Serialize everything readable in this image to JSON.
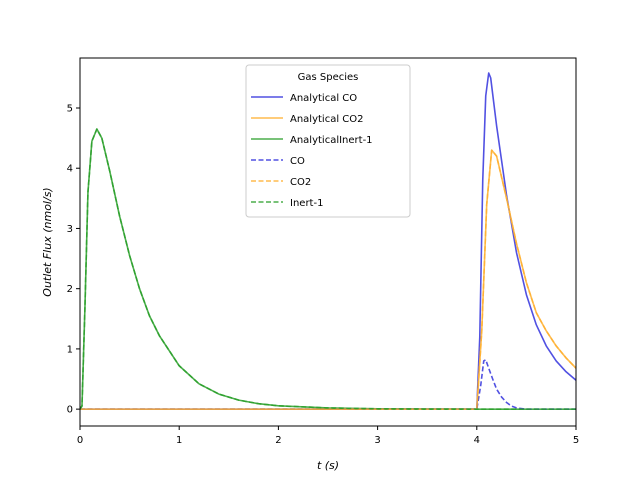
{
  "chart_data": {
    "type": "line",
    "title": "",
    "xlabel": "t (s)",
    "ylabel": "Outlet Flux (nmol/s)",
    "xlim": [
      0,
      5
    ],
    "ylim": [
      -0.28,
      5.83
    ],
    "xticks": [
      "0",
      "1",
      "2",
      "3",
      "4",
      "5"
    ],
    "yticks": [
      "0",
      "1",
      "2",
      "3",
      "4",
      "5"
    ],
    "grid": false,
    "legend": {
      "title": "Gas Species",
      "placement": "upper-center"
    },
    "colors": {
      "CO": "#3333dd",
      "CO2": "#ffb030",
      "Inert": "#2ca02c"
    },
    "series": [
      {
        "name": "Analytical CO",
        "color": "#3333dd",
        "dash": "solid",
        "x": [
          0,
          4.0,
          4.03,
          4.06,
          4.09,
          4.12,
          4.14,
          4.17,
          4.2,
          4.3,
          4.4,
          4.5,
          4.6,
          4.7,
          4.8,
          4.9,
          5.0
        ],
        "y": [
          0,
          0,
          1.2,
          3.8,
          5.2,
          5.58,
          5.5,
          5.1,
          4.7,
          3.55,
          2.6,
          1.9,
          1.4,
          1.05,
          0.8,
          0.62,
          0.48
        ]
      },
      {
        "name": "Analytical CO2",
        "color": "#ffb030",
        "dash": "solid",
        "x": [
          0,
          4.0,
          4.05,
          4.1,
          4.15,
          4.2,
          4.3,
          4.4,
          4.5,
          4.6,
          4.7,
          4.8,
          4.9,
          5.0
        ],
        "y": [
          0,
          0,
          1.3,
          3.4,
          4.3,
          4.2,
          3.5,
          2.75,
          2.1,
          1.6,
          1.3,
          1.05,
          0.85,
          0.68
        ]
      },
      {
        "name": "AnalyticalInert-1",
        "color": "#2ca02c",
        "dash": "solid",
        "x": [
          0,
          0.02,
          0.05,
          0.08,
          0.12,
          0.17,
          0.22,
          0.3,
          0.4,
          0.5,
          0.6,
          0.7,
          0.8,
          1.0,
          1.2,
          1.4,
          1.6,
          1.8,
          2.0,
          2.5,
          3.0,
          3.5,
          4.0,
          5.0
        ],
        "y": [
          0,
          0.05,
          1.7,
          3.6,
          4.45,
          4.65,
          4.5,
          3.95,
          3.2,
          2.55,
          2.0,
          1.55,
          1.22,
          0.72,
          0.42,
          0.25,
          0.15,
          0.09,
          0.055,
          0.02,
          0.006,
          0.002,
          0.0,
          0.0
        ]
      },
      {
        "name": "CO",
        "color": "#3333dd",
        "dash": "dashed",
        "x": [
          0,
          4.0,
          4.04,
          4.07,
          4.09,
          4.12,
          4.16,
          4.2,
          4.25,
          4.3,
          4.35,
          4.4,
          4.5,
          5.0
        ],
        "y": [
          0,
          0,
          0.4,
          0.8,
          0.82,
          0.68,
          0.5,
          0.33,
          0.2,
          0.11,
          0.05,
          0.02,
          0.0,
          0.0
        ]
      },
      {
        "name": "CO2",
        "color": "#ffb030",
        "dash": "dashed",
        "x": [
          0,
          4.0,
          4.05,
          4.1,
          4.15,
          4.2,
          4.3,
          4.4,
          4.5,
          4.6,
          4.7,
          4.8,
          4.9,
          5.0
        ],
        "y": [
          0,
          0,
          1.3,
          3.4,
          4.3,
          4.2,
          3.5,
          2.75,
          2.1,
          1.6,
          1.3,
          1.05,
          0.85,
          0.68
        ]
      },
      {
        "name": "Inert-1",
        "color": "#2ca02c",
        "dash": "dashed",
        "x": [
          0,
          0.02,
          0.05,
          0.08,
          0.12,
          0.17,
          0.22,
          0.3,
          0.4,
          0.5,
          0.6,
          0.7,
          0.8,
          1.0,
          1.2,
          1.4,
          1.6,
          1.8,
          2.0,
          2.5,
          3.0,
          3.5,
          4.0,
          5.0
        ],
        "y": [
          0,
          0.05,
          1.7,
          3.6,
          4.45,
          4.65,
          4.5,
          3.95,
          3.2,
          2.55,
          2.0,
          1.55,
          1.22,
          0.72,
          0.42,
          0.25,
          0.15,
          0.09,
          0.055,
          0.02,
          0.006,
          0.002,
          0.0,
          0.0
        ]
      }
    ]
  }
}
